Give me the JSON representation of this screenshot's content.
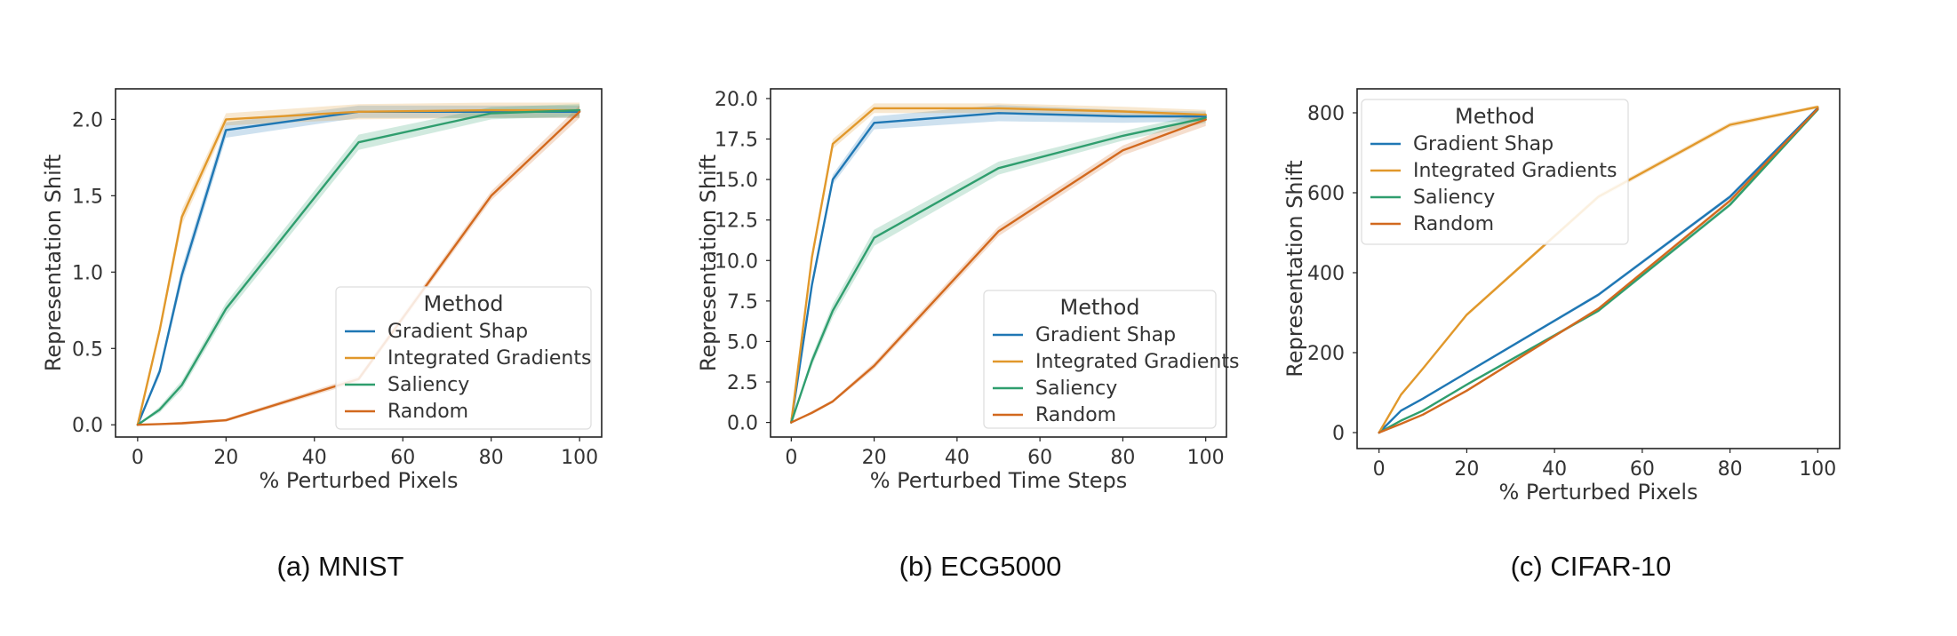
{
  "legend_title": "Method",
  "colors": {
    "Gradient Shap": "#1f77b4",
    "Integrated Gradients": "#e1982b",
    "Saliency": "#2f9e6e",
    "Random": "#d2691e"
  },
  "chart_data": [
    {
      "type": "line",
      "caption": "(a)  MNIST",
      "xlabel": "% Perturbed Pixels",
      "ylabel": "Representation Shift",
      "xlim": [
        -5,
        105
      ],
      "ylim": [
        -0.08,
        2.2
      ],
      "xticks": [
        0,
        20,
        40,
        60,
        80,
        100
      ],
      "yticks": [
        0.0,
        0.5,
        1.0,
        1.5,
        2.0
      ],
      "ytick_labels": [
        "0.0",
        "0.5",
        "1.0",
        "1.5",
        "2.0"
      ],
      "grid": false,
      "legend_position": "lower-right",
      "x": [
        0,
        5,
        10,
        20,
        50,
        80,
        100
      ],
      "series": [
        {
          "name": "Gradient Shap",
          "values": [
            0,
            0.35,
            0.98,
            1.93,
            2.05,
            2.05,
            2.05
          ],
          "band": [
            0,
            0.03,
            0.05,
            0.05,
            0.04,
            0.04,
            0.04
          ]
        },
        {
          "name": "Integrated Gradients",
          "values": [
            0,
            0.62,
            1.36,
            2.0,
            2.05,
            2.06,
            2.06
          ],
          "band": [
            0,
            0.03,
            0.05,
            0.04,
            0.05,
            0.05,
            0.05
          ]
        },
        {
          "name": "Saliency",
          "values": [
            0,
            0.1,
            0.26,
            0.76,
            1.85,
            2.04,
            2.06
          ],
          "band": [
            0,
            0.02,
            0.03,
            0.04,
            0.05,
            0.04,
            0.04
          ]
        },
        {
          "name": "Random",
          "values": [
            0,
            0.005,
            0.01,
            0.03,
            0.3,
            1.5,
            2.05
          ],
          "band": [
            0,
            0.005,
            0.01,
            0.01,
            0.02,
            0.03,
            0.04
          ]
        }
      ]
    },
    {
      "type": "line",
      "caption": "(b)  ECG5000",
      "xlabel": "% Perturbed Time Steps",
      "ylabel": "Representation Shift",
      "xlim": [
        -5,
        105
      ],
      "ylim": [
        -0.9,
        20.6
      ],
      "xticks": [
        0,
        20,
        40,
        60,
        80,
        100
      ],
      "yticks": [
        0.0,
        2.5,
        5.0,
        7.5,
        10.0,
        12.5,
        15.0,
        17.5,
        20.0
      ],
      "ytick_labels": [
        "0.0",
        "2.5",
        "5.0",
        "7.5",
        "10.0",
        "12.5",
        "15.0",
        "17.5",
        "20.0"
      ],
      "grid": false,
      "legend_position": "lower-right",
      "x": [
        0,
        5,
        10,
        20,
        50,
        80,
        100
      ],
      "series": [
        {
          "name": "Gradient Shap",
          "values": [
            0,
            8.5,
            15.0,
            18.5,
            19.1,
            18.9,
            18.9
          ],
          "band": [
            0,
            0.3,
            0.3,
            0.4,
            0.5,
            0.4,
            0.3
          ]
        },
        {
          "name": "Integrated Gradients",
          "values": [
            0,
            10.2,
            17.2,
            19.4,
            19.4,
            19.2,
            19.0
          ],
          "band": [
            0,
            0.3,
            0.3,
            0.3,
            0.3,
            0.3,
            0.3
          ]
        },
        {
          "name": "Saliency",
          "values": [
            0,
            3.8,
            6.9,
            11.4,
            15.7,
            17.7,
            18.8
          ],
          "band": [
            0,
            0.3,
            0.4,
            0.5,
            0.4,
            0.3,
            0.3
          ]
        },
        {
          "name": "Random",
          "values": [
            0,
            0.6,
            1.3,
            3.5,
            11.8,
            16.8,
            18.7
          ],
          "band": [
            0,
            0.1,
            0.1,
            0.2,
            0.3,
            0.3,
            0.4
          ]
        }
      ]
    },
    {
      "type": "line",
      "caption": "(c)  CIFAR-10",
      "xlabel": "% Perturbed Pixels",
      "ylabel": "Representation Shift",
      "xlim": [
        -5,
        105
      ],
      "ylim": [
        -40,
        860
      ],
      "xticks": [
        0,
        20,
        40,
        60,
        80,
        100
      ],
      "yticks": [
        0,
        200,
        400,
        600,
        800
      ],
      "ytick_labels": [
        "0",
        "200",
        "400",
        "600",
        "800"
      ],
      "grid": false,
      "legend_position": "upper-left",
      "x": [
        0,
        5,
        10,
        20,
        50,
        80,
        100
      ],
      "series": [
        {
          "name": "Gradient Shap",
          "values": [
            0,
            55,
            85,
            150,
            345,
            590,
            812
          ],
          "band": [
            0,
            2,
            2,
            3,
            4,
            5,
            4
          ]
        },
        {
          "name": "Integrated Gradients",
          "values": [
            0,
            95,
            160,
            295,
            590,
            770,
            815
          ],
          "band": [
            0,
            3,
            3,
            4,
            6,
            6,
            4
          ]
        },
        {
          "name": "Saliency",
          "values": [
            0,
            30,
            55,
            120,
            305,
            570,
            808
          ],
          "band": [
            0,
            2,
            2,
            3,
            4,
            5,
            4
          ]
        },
        {
          "name": "Random",
          "values": [
            0,
            22,
            45,
            105,
            310,
            580,
            810
          ],
          "band": [
            0,
            2,
            2,
            3,
            4,
            5,
            4
          ]
        }
      ]
    }
  ]
}
